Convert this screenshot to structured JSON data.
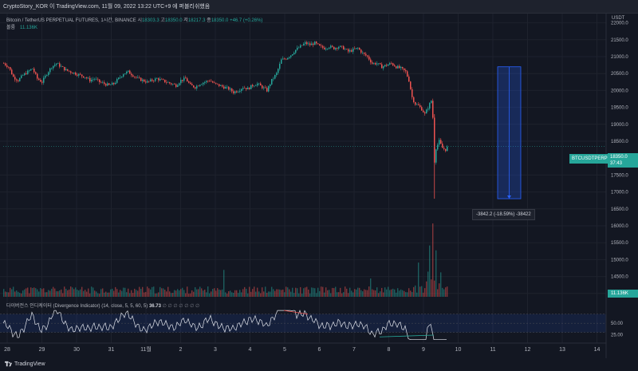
{
  "header": {
    "title": "CryptoStory_KOR 이 TradingView.com, 11월 09, 2022 13:22 UTC+9 에 퍼블리쉬했음"
  },
  "legend": {
    "symbol": "Bitcoin / TetherUS PERPETUAL FUTURES, 1시간, BINANCE",
    "ohlc_prefix_o": "시",
    "open": "18303.3",
    "ohlc_prefix_h": "고",
    "high": "18350.0",
    "ohlc_prefix_l": "저",
    "low": "18217.3",
    "ohlc_prefix_c": "종",
    "close": "18350.0",
    "change": "+46.7 (+0.26%)",
    "volume_label": "볼륨",
    "volume_value": "11.136K"
  },
  "indicator": {
    "name": "다이버전스 인디케이터 (Divergence Indicator) (14, close, 5, 5, 60, 5)",
    "value": "36.73",
    "circles": "∅ ∅ ∅ ∅ ∅ ∅ ∅",
    "levels": [
      "50.00",
      "25.00"
    ]
  },
  "price_axis": {
    "currency": "USDT",
    "labels": [
      "22000.0",
      "21500.0",
      "21000.0",
      "20500.0",
      "20000.0",
      "19500.0",
      "19000.0",
      "18500.0",
      "17500.0",
      "17000.0",
      "16500.0",
      "16000.0",
      "15500.0",
      "15000.0",
      "14500.0",
      "14000.0"
    ],
    "current_price": "18350.0",
    "countdown": "37:43",
    "volume_tag": "11.136K"
  },
  "symbol_tag": "BTCUSDTPERP",
  "measure_label": "-3842.2 (-18.59%) -38422",
  "time_axis": [
    "28",
    "29",
    "30",
    "31",
    "11월",
    "2",
    "3",
    "4",
    "5",
    "6",
    "7",
    "8",
    "9",
    "10",
    "11",
    "12",
    "13",
    "14"
  ],
  "footer": {
    "brand": "TradingView"
  },
  "colors": {
    "up": "#26a69a",
    "down": "#ef5350",
    "accent": "#2962ff",
    "background": "#131722"
  },
  "chart_data": {
    "type": "candlestick",
    "interval": "1h",
    "price_range": [
      13900,
      22250
    ],
    "current_price": 18350.0,
    "close_path": [
      [
        0,
        20800
      ],
      [
        6,
        20700
      ],
      [
        12,
        20400
      ],
      [
        18,
        20300
      ],
      [
        24,
        20450
      ],
      [
        30,
        20550
      ],
      [
        36,
        20650
      ],
      [
        42,
        20350
      ],
      [
        48,
        20250
      ],
      [
        54,
        20500
      ],
      [
        60,
        20700
      ],
      [
        66,
        20800
      ],
      [
        72,
        20700
      ],
      [
        78,
        20600
      ],
      [
        84,
        20550
      ],
      [
        90,
        20500
      ],
      [
        96,
        20450
      ],
      [
        102,
        20400
      ],
      [
        108,
        20300
      ],
      [
        114,
        20350
      ],
      [
        120,
        20250
      ],
      [
        126,
        20200
      ],
      [
        132,
        20150
      ],
      [
        138,
        20200
      ],
      [
        144,
        20350
      ],
      [
        150,
        20500
      ],
      [
        156,
        20550
      ],
      [
        162,
        20450
      ],
      [
        168,
        20350
      ],
      [
        174,
        20300
      ],
      [
        180,
        20250
      ],
      [
        186,
        20300
      ],
      [
        192,
        20350
      ],
      [
        198,
        20300
      ],
      [
        204,
        20250
      ],
      [
        210,
        20200
      ],
      [
        216,
        20150
      ],
      [
        222,
        20300
      ],
      [
        228,
        20350
      ],
      [
        234,
        20150
      ],
      [
        240,
        20100
      ],
      [
        246,
        20200
      ],
      [
        252,
        20250
      ],
      [
        258,
        20300
      ],
      [
        264,
        20200
      ],
      [
        270,
        20150
      ],
      [
        276,
        20100
      ],
      [
        282,
        20050
      ],
      [
        288,
        19950
      ],
      [
        294,
        20000
      ],
      [
        300,
        20100
      ],
      [
        306,
        20050
      ],
      [
        312,
        20150
      ],
      [
        318,
        20200
      ],
      [
        324,
        20100
      ],
      [
        330,
        20000
      ],
      [
        336,
        20300
      ],
      [
        342,
        20500
      ],
      [
        348,
        20900
      ],
      [
        354,
        20950
      ],
      [
        360,
        21050
      ],
      [
        366,
        21200
      ],
      [
        372,
        21300
      ],
      [
        378,
        21400
      ],
      [
        384,
        21350
      ],
      [
        390,
        21400
      ],
      [
        396,
        21300
      ],
      [
        402,
        21250
      ],
      [
        408,
        21300
      ],
      [
        414,
        21250
      ],
      [
        420,
        21300
      ],
      [
        426,
        21250
      ],
      [
        432,
        21150
      ],
      [
        438,
        21200
      ],
      [
        444,
        21250
      ],
      [
        450,
        21100
      ],
      [
        456,
        21000
      ],
      [
        462,
        20800
      ],
      [
        468,
        20800
      ],
      [
        474,
        20700
      ],
      [
        480,
        20750
      ],
      [
        486,
        20800
      ],
      [
        492,
        20700
      ],
      [
        498,
        20650
      ],
      [
        504,
        20550
      ],
      [
        508,
        20300
      ],
      [
        512,
        19800
      ],
      [
        516,
        19600
      ],
      [
        520,
        19550
      ],
      [
        524,
        19450
      ],
      [
        528,
        19300
      ],
      [
        532,
        19500
      ],
      [
        536,
        19700
      ],
      [
        538,
        19200
      ],
      [
        540,
        17900
      ],
      [
        542,
        18300
      ],
      [
        546,
        18500
      ],
      [
        550,
        18300
      ],
      [
        554,
        18250
      ],
      [
        557,
        18350
      ]
    ],
    "volume_spikes": [
      [
        276,
        22000
      ],
      [
        460,
        15000
      ],
      [
        520,
        28000
      ],
      [
        534,
        42000
      ],
      [
        538,
        60000
      ],
      [
        542,
        38000
      ],
      [
        548,
        20000
      ]
    ],
    "measure": {
      "start_price": 20700,
      "end_price": 16800,
      "change": "-3842.2 (-18.59%) -38422"
    }
  }
}
